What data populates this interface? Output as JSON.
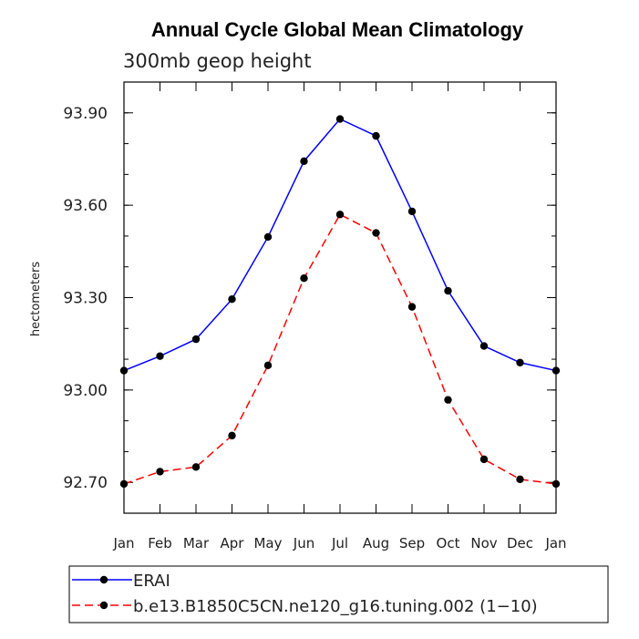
{
  "chart_data": {
    "type": "line",
    "title": "Annual Cycle Global Mean Climatology",
    "subtitle": "300mb geop height",
    "xlabel": "",
    "ylabel": "hectometers",
    "categories": [
      "Jan",
      "Feb",
      "Mar",
      "Apr",
      "May",
      "Jun",
      "Jul",
      "Aug",
      "Sep",
      "Oct",
      "Nov",
      "Dec",
      "Jan"
    ],
    "y_ticks": [
      "93.90",
      "93.60",
      "93.30",
      "93.00",
      "92.70"
    ],
    "ylim": [
      92.6,
      94.0
    ],
    "series": [
      {
        "name": "ERAI",
        "color": "#0000ff",
        "dash": "solid",
        "values": [
          93.063,
          93.11,
          93.165,
          93.295,
          93.497,
          93.743,
          93.88,
          93.825,
          93.58,
          93.322,
          93.143,
          93.089,
          93.063
        ]
      },
      {
        "name": "b.e13.B1850C5CN.ne120_g16.tuning.002 (1−10)",
        "color": "#ff0000",
        "dash": "dashed",
        "values": [
          92.695,
          92.735,
          92.75,
          92.852,
          93.08,
          93.363,
          93.57,
          93.51,
          93.27,
          92.968,
          92.775,
          92.71,
          92.695
        ]
      }
    ],
    "grid": false,
    "legend_position": "bottom"
  }
}
